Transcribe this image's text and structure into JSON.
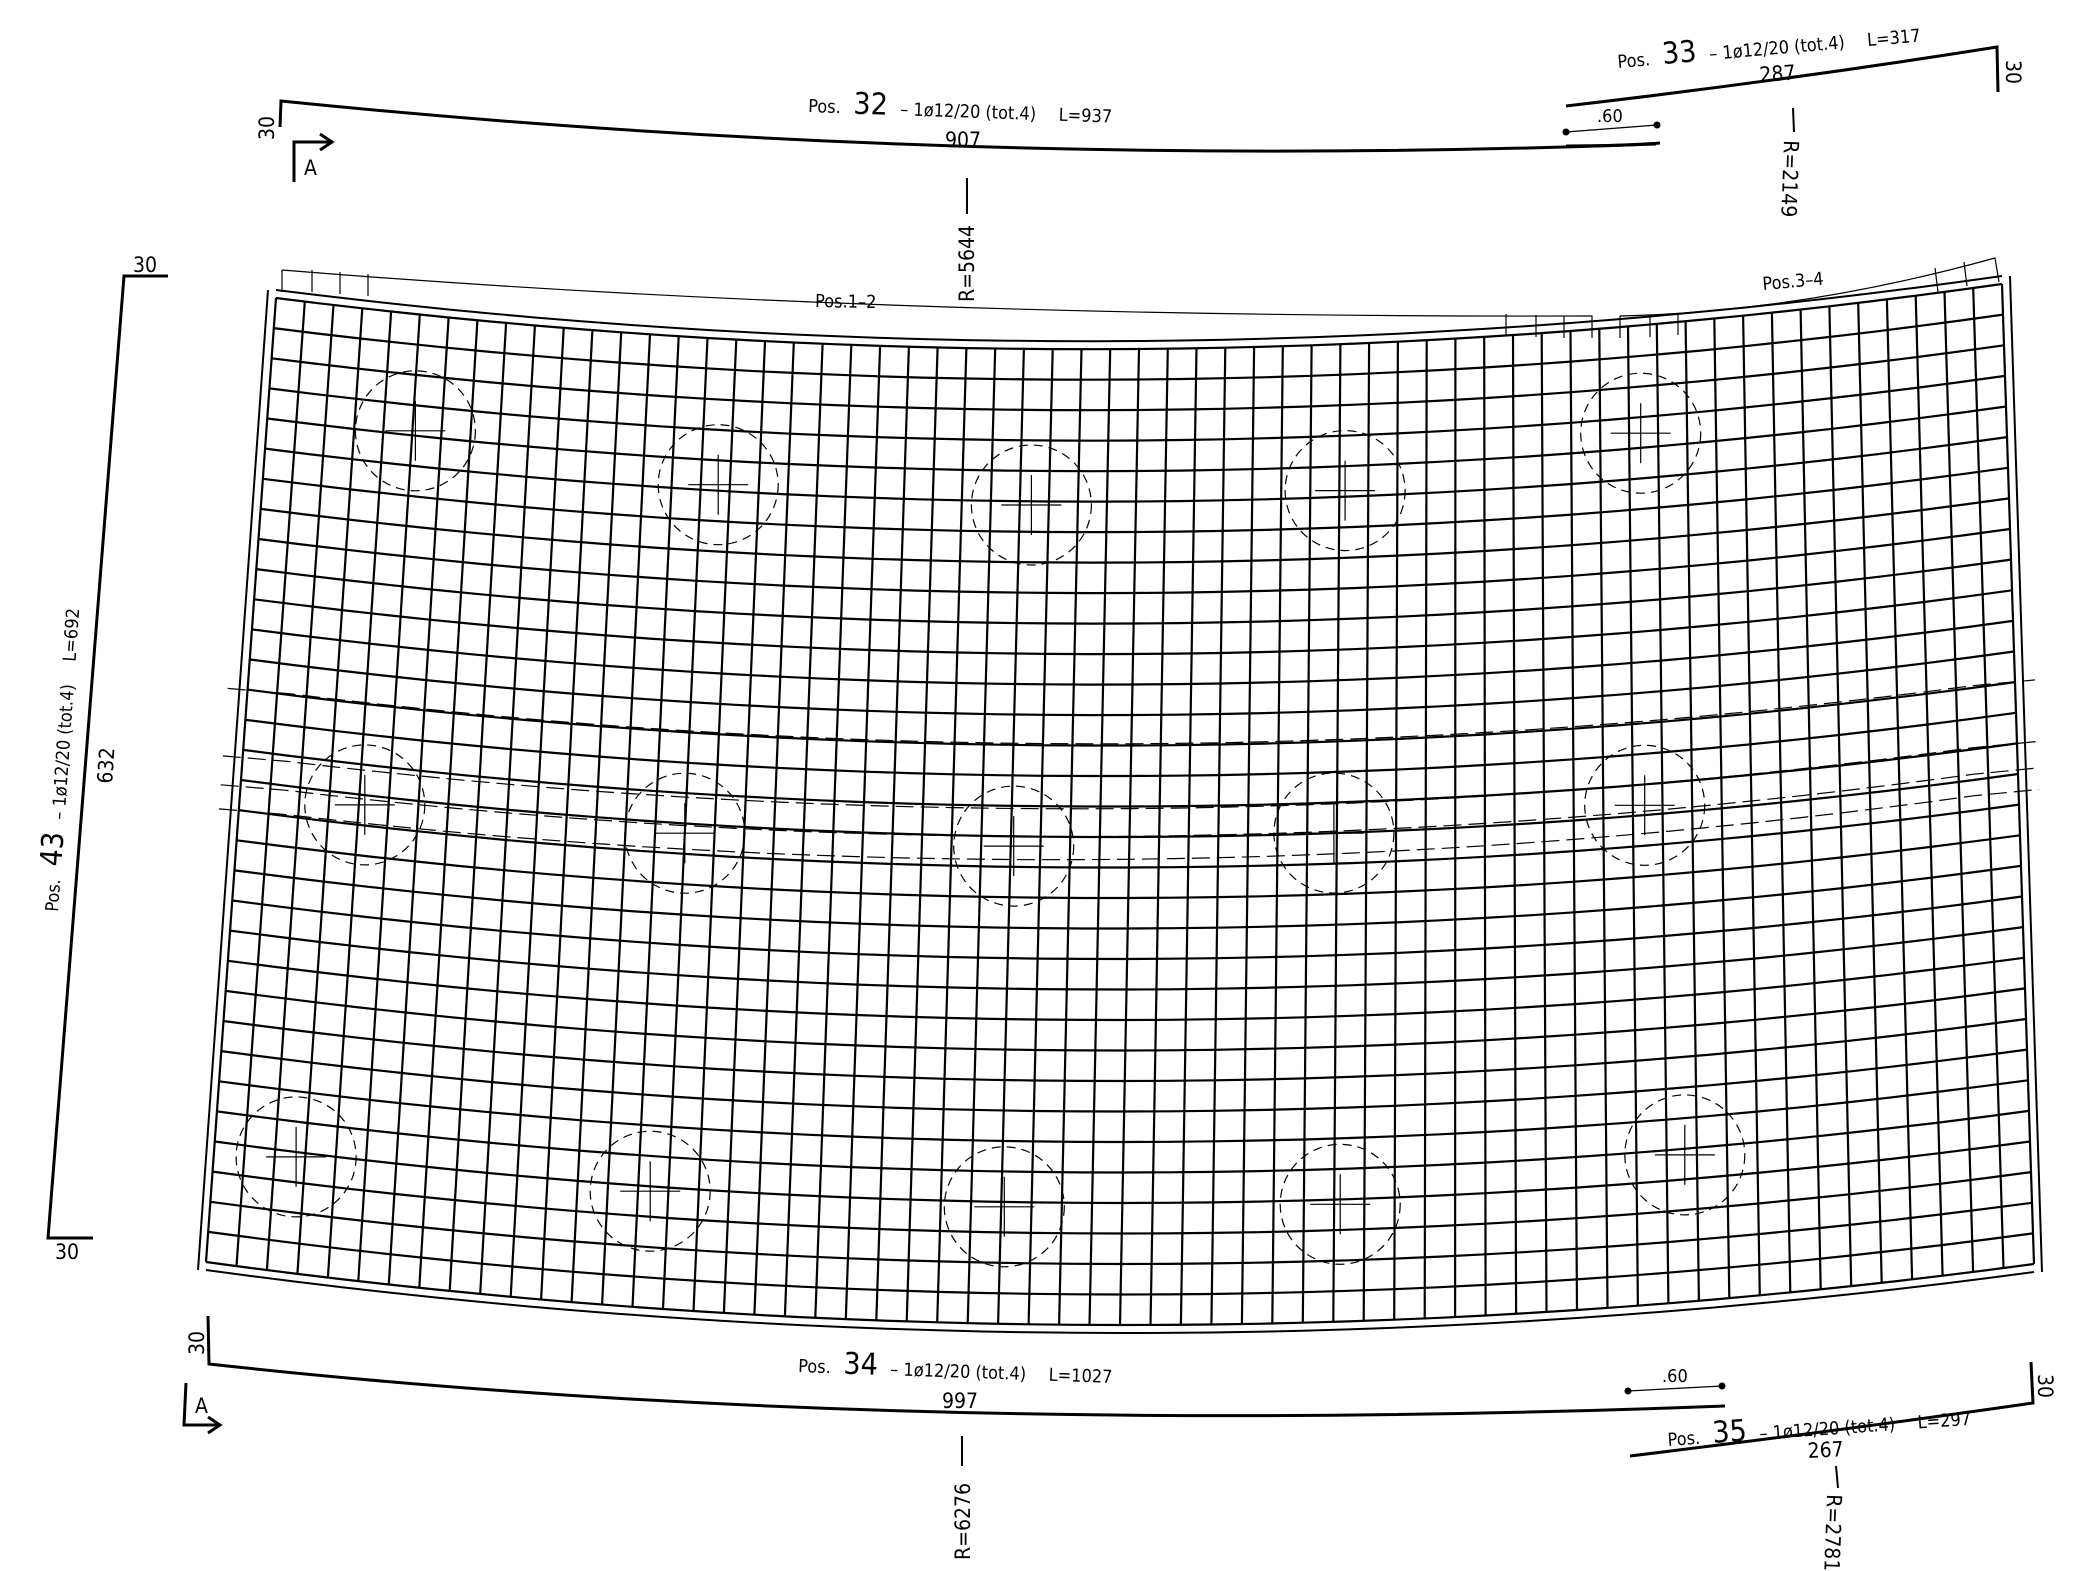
{
  "colors": {
    "ink": "#000000",
    "background": "#ffffff"
  },
  "grid": {
    "rows": 32,
    "columns": 60
  },
  "section_marker": {
    "letter": "A"
  },
  "bars": {
    "pos32": {
      "prefix": "Pos.",
      "number": "32",
      "spec": "– 1ø12/20 (tot.4)",
      "length": "L=937",
      "straight": "907",
      "hook": "30",
      "radius": "R=5644"
    },
    "pos33": {
      "prefix": "Pos.",
      "number": "33",
      "spec": "– 1ø12/20 (tot.4)",
      "length": "L=317",
      "straight": "287",
      "hook": "30",
      "radius": "R=2149",
      "overlap": ".60"
    },
    "pos34": {
      "prefix": "Pos.",
      "number": "34",
      "spec": "– 1ø12/20 (tot.4)",
      "length": "L=1027",
      "straight": "997",
      "hook": "30",
      "radius": "R=6276"
    },
    "pos35": {
      "prefix": "Pos.",
      "number": "35",
      "spec": "– 1ø12/20 (tot.4)",
      "length": "L=297",
      "straight": "267",
      "hook": "30",
      "radius": "R=2781",
      "overlap": ".60"
    },
    "pos43": {
      "prefix": "Pos.",
      "number": "43",
      "spec": "– 1ø12/20 (tot.4)",
      "length": "L=692",
      "straight": "632",
      "hook_top": "30",
      "hook_bottom": "30"
    }
  },
  "mesh_labels": {
    "left": "Pos.1–2",
    "right": "Pos.3–4"
  }
}
